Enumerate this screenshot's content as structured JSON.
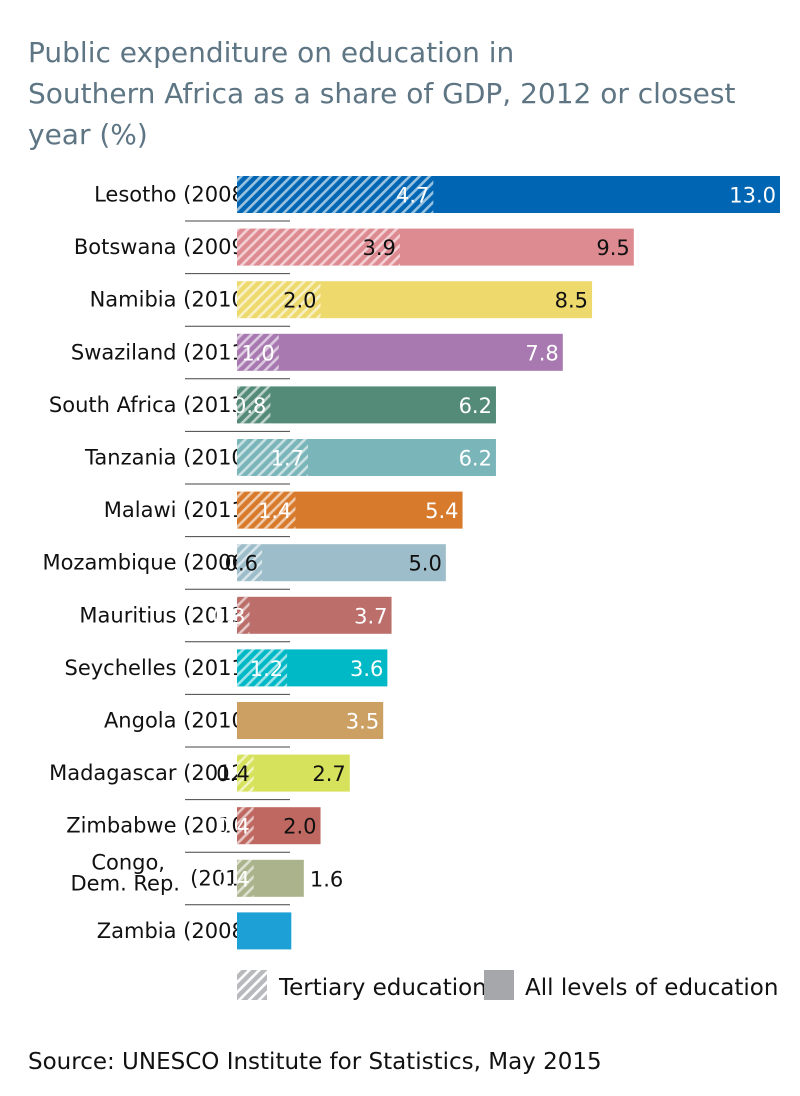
{
  "chart_data": {
    "type": "bar",
    "orientation": "horizontal",
    "title_lines": [
      "Public expenditure on education in",
      "Southern Africa as a share of GDP, 2012 or closest",
      "year (%)"
    ],
    "categories": [
      "Lesotho (2008)",
      "Botswana (2009)",
      "Namibia (2010)",
      "Swaziland (2011)",
      "South Africa (2013)",
      "Tanzania (2010)",
      "Malawi (2011)",
      "Mozambique (2006)",
      "Mauritius (2013)",
      "Seychelles (2011)",
      "Angola (2010)",
      "Madagascar (2012)",
      "Zimbabwe (2010)",
      "Congo, Dem. Rep. (2010)",
      "Zambia (2008)"
    ],
    "category_lines": [
      [
        "Lesotho (2008)"
      ],
      [
        "Botswana (2009)"
      ],
      [
        "Namibia (2010)"
      ],
      [
        "Swaziland (2011)"
      ],
      [
        "South Africa (2013)"
      ],
      [
        "Tanzania (2010)"
      ],
      [
        "Malawi (2011)"
      ],
      [
        "Mozambique (2006)"
      ],
      [
        "Mauritius (2013)"
      ],
      [
        "Seychelles (2011)"
      ],
      [
        "Angola (2010)"
      ],
      [
        "Madagascar (2012)"
      ],
      [
        "Zimbabwe (2010)"
      ],
      [
        "Congo,",
        "Dem. Rep.",
        "(2010)"
      ],
      [
        "Zambia (2008)"
      ]
    ],
    "series": [
      {
        "name": "All levels of education",
        "values": [
          13.0,
          9.5,
          8.5,
          7.8,
          6.2,
          6.2,
          5.4,
          5.0,
          3.7,
          3.6,
          3.5,
          2.7,
          2.0,
          1.6,
          1.3
        ]
      },
      {
        "name": "Tertiary education",
        "values": [
          4.7,
          3.9,
          2.0,
          1.0,
          0.8,
          1.7,
          1.4,
          0.6,
          0.3,
          1.2,
          null,
          0.4,
          0.4,
          0.4,
          null
        ]
      }
    ],
    "bar_colors": [
      "#0066b3",
      "#de8a91",
      "#eed96d",
      "#a779b0",
      "#548a78",
      "#7ab5ba",
      "#d77a2c",
      "#9dbdca",
      "#bb6e6a",
      "#00b9c7",
      "#cca063",
      "#d6e25b",
      "#bf6861",
      "#aab38c",
      "#1da0d6"
    ],
    "all_label_colors": [
      "#ffffff",
      "#111111",
      "#111111",
      "#ffffff",
      "#ffffff",
      "#ffffff",
      "#ffffff",
      "#111111",
      "#ffffff",
      "#ffffff",
      "#ffffff",
      "#111111",
      "#111111",
      "#111111",
      "#ffffff"
    ],
    "tertiary_label_colors": [
      "#ffffff",
      "#111111",
      "#111111",
      "#ffffff",
      "#ffffff",
      "#ffffff",
      "#ffffff",
      "#111111",
      "#ffffff",
      "#ffffff",
      "#111111",
      "#111111",
      "#ffffff",
      "#ffffff",
      "#ffffff"
    ],
    "xlim": [
      0,
      13.0
    ],
    "grid": false,
    "legend": {
      "position": "bottom",
      "items": [
        {
          "label": "Tertiary education",
          "style": "hatched",
          "color": "#aaaaaa"
        },
        {
          "label": "All levels of education",
          "style": "solid",
          "color": "#a6a7ab"
        }
      ]
    },
    "source": "Source: UNESCO Institute for Statistics, May 2015"
  }
}
